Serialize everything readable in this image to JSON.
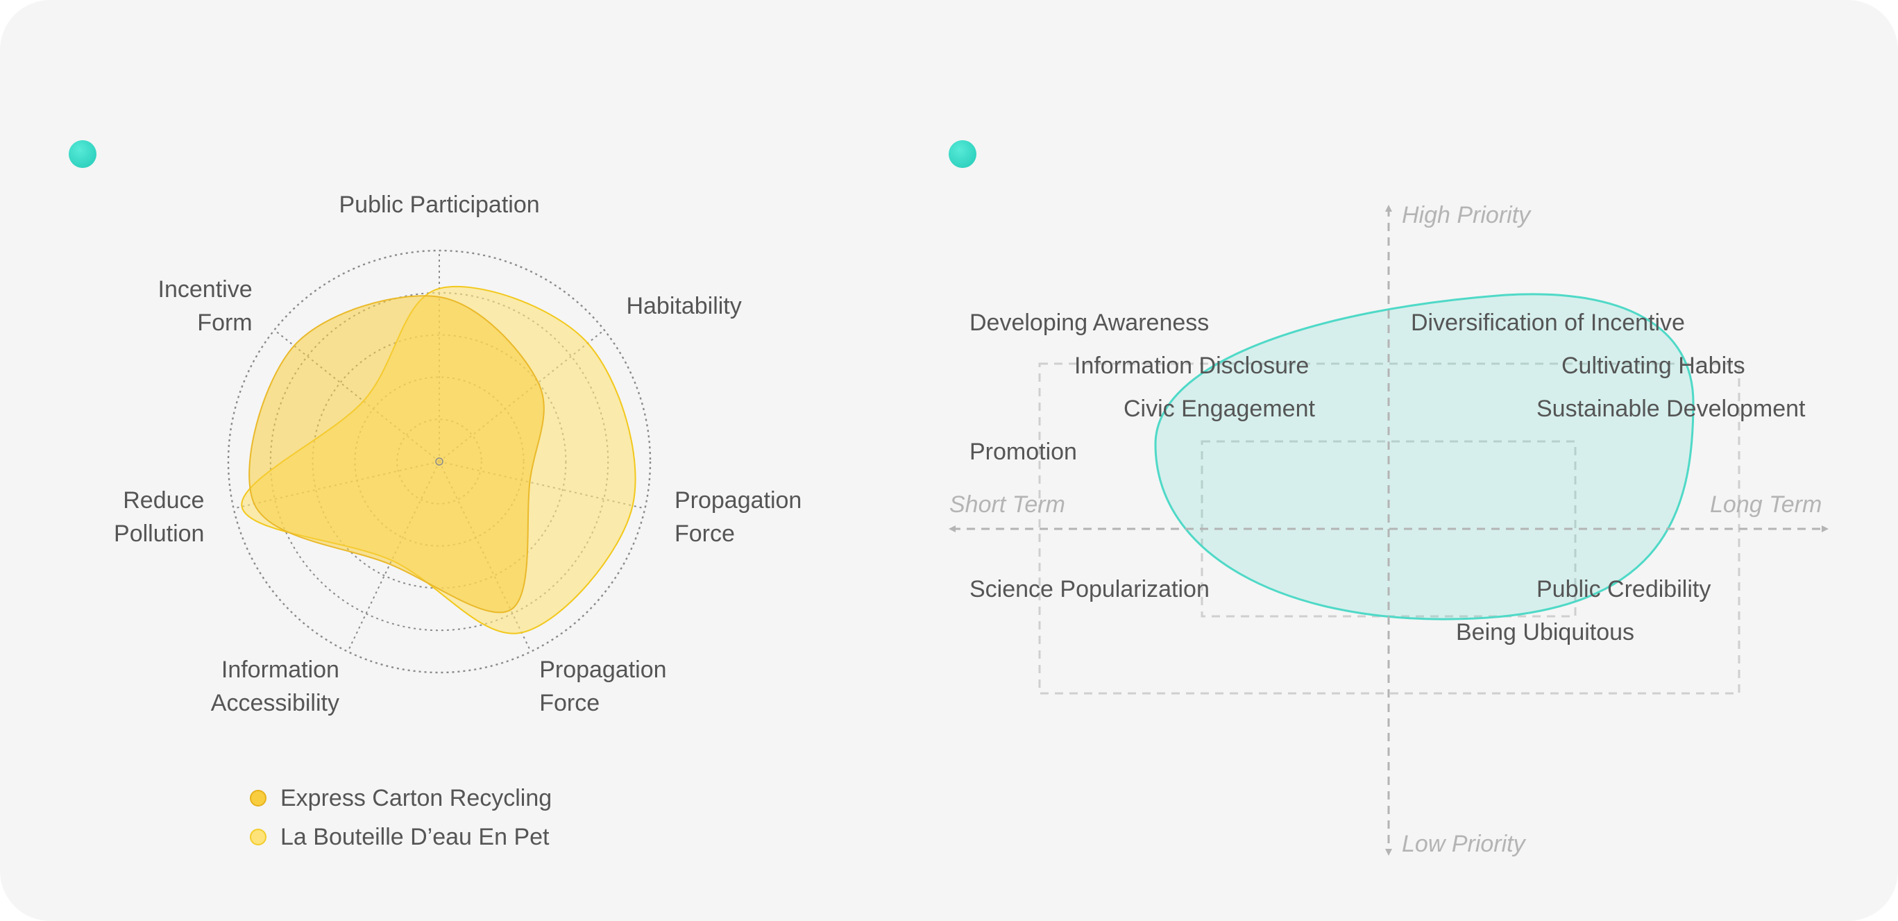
{
  "colors": {
    "background": "#f5f5f5",
    "accent_dot": "#2bd4c0",
    "series_1": "#f8cd3f",
    "series_2": "#fde37a",
    "ellipse": "#4fd9c7",
    "grid": "#888888",
    "quadrant_line": "#c8c8c8"
  },
  "icons": {
    "panel_marker": "teal-dot"
  },
  "chart_data": [
    {
      "type": "radar",
      "axes": [
        "Public Participation",
        "Habitability",
        "Propagation Force",
        "Propagation Force",
        "Information Accessibility",
        "Reduce Pollution",
        "Incentive Form"
      ],
      "axis_label_lines": [
        [
          "Public Participation"
        ],
        [
          "Habitability"
        ],
        [
          "Propagation",
          "Force"
        ],
        [
          "Propagation",
          "Force"
        ],
        [
          "Information",
          "Accessibility"
        ],
        [
          "Reduce",
          "Pollution"
        ],
        [
          "Incentive",
          "Form"
        ]
      ],
      "rings": 5,
      "range": [
        0,
        5
      ],
      "series": [
        {
          "name": "Express Carton Recycling",
          "values": [
            3.9,
            3.0,
            2.2,
            3.9,
            2.7,
            4.5,
            4.4
          ]
        },
        {
          "name": "La Bouteille D’eau En Pet",
          "values": [
            4.1,
            4.5,
            4.7,
            4.5,
            2.6,
            4.8,
            2.3
          ]
        }
      ],
      "legend": "bottom-left"
    },
    {
      "type": "quadrant",
      "x_axis": {
        "negative": "Short Term",
        "positive": "Long Term"
      },
      "y_axis": {
        "positive": "High Priority",
        "negative": "Low Priority"
      },
      "items": [
        "Developing Awareness",
        "Diversification of Incentive",
        "Information Disclosure",
        "Cultivating Habits",
        "Civic Engagement",
        "Sustainable Development",
        "Promotion",
        "Science Popularization",
        "Public Credibility",
        "Being Ubiquitous"
      ]
    }
  ]
}
